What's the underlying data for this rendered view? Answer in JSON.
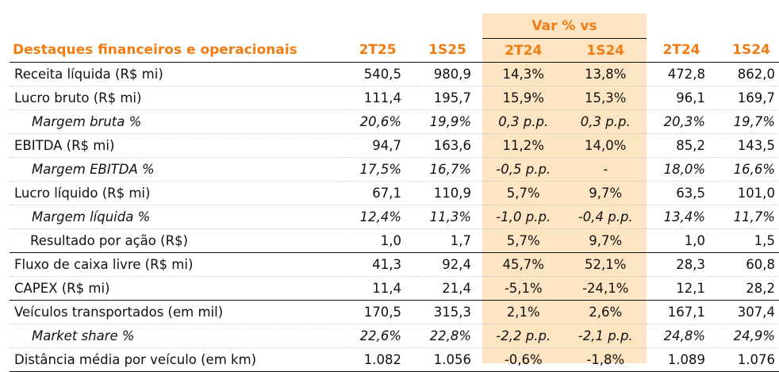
{
  "table": {
    "title": "Destaques financeiros e operacionais",
    "group_header": "Var % vs",
    "columns": [
      "2T25",
      "1S25",
      "2T24",
      "1S24",
      "2T24",
      "1S24"
    ],
    "colors": {
      "header_text": "#f07c12",
      "highlight_bg": "#fde4c2"
    },
    "rows": [
      {
        "label": "Receita líquida (R$ mi)",
        "values": [
          "540,5",
          "980,9",
          "14,3%",
          "13,8%",
          "472,8",
          "862,0"
        ]
      },
      {
        "label": "Lucro bruto (R$ mi)",
        "values": [
          "111,4",
          "195,7",
          "15,9%",
          "15,3%",
          "96,1",
          "169,7"
        ]
      },
      {
        "label": "Margem bruta %",
        "values": [
          "20,6%",
          "19,9%",
          "0,3 p.p.",
          "0,3 p.p.",
          "20,3%",
          "19,7%"
        ]
      },
      {
        "label": "EBITDA (R$ mi)",
        "values": [
          "94,7",
          "163,6",
          "11,2%",
          "14,0%",
          "85,2",
          "143,5"
        ]
      },
      {
        "label": "Margem EBITDA %",
        "values": [
          "17,5%",
          "16,7%",
          "-0,5 p.p.",
          "-",
          "18,0%",
          "16,6%"
        ]
      },
      {
        "label": "Lucro líquido (R$ mi)",
        "values": [
          "67,1",
          "110,9",
          "5,7%",
          "9,7%",
          "63,5",
          "101,0"
        ]
      },
      {
        "label": "Margem líquida %",
        "values": [
          "12,4%",
          "11,3%",
          "-1,0 p.p.",
          "-0,4 p.p.",
          "13,4%",
          "11,7%"
        ]
      },
      {
        "label": "Resultado por ação (R$)",
        "values": [
          "1,0",
          "1,7",
          "5,7%",
          "9,7%",
          "1,0",
          "1,5"
        ]
      },
      {
        "label": "Fluxo de caixa livre (R$ mi)",
        "values": [
          "41,3",
          "92,4",
          "45,7%",
          "52,1%",
          "28,3",
          "60,8"
        ]
      },
      {
        "label": "CAPEX (R$ mi)",
        "values": [
          "11,4",
          "21,4",
          "-5,1%",
          "-24,1%",
          "12,1",
          "28,2"
        ]
      },
      {
        "label": "Veículos transportados (em mil)",
        "values": [
          "170,5",
          "315,3",
          "2,1%",
          "2,6%",
          "167,1",
          "307,4"
        ]
      },
      {
        "label": "Market share %",
        "values": [
          "22,6%",
          "22,8%",
          "-2,2 p.p.",
          "-2,1 p.p.",
          "24,8%",
          "24,9%"
        ]
      },
      {
        "label": "Distância média por veículo (em km)",
        "values": [
          "1.082",
          "1.056",
          "-0,6%",
          "-1,8%",
          "1.089",
          "1.076"
        ]
      }
    ]
  }
}
